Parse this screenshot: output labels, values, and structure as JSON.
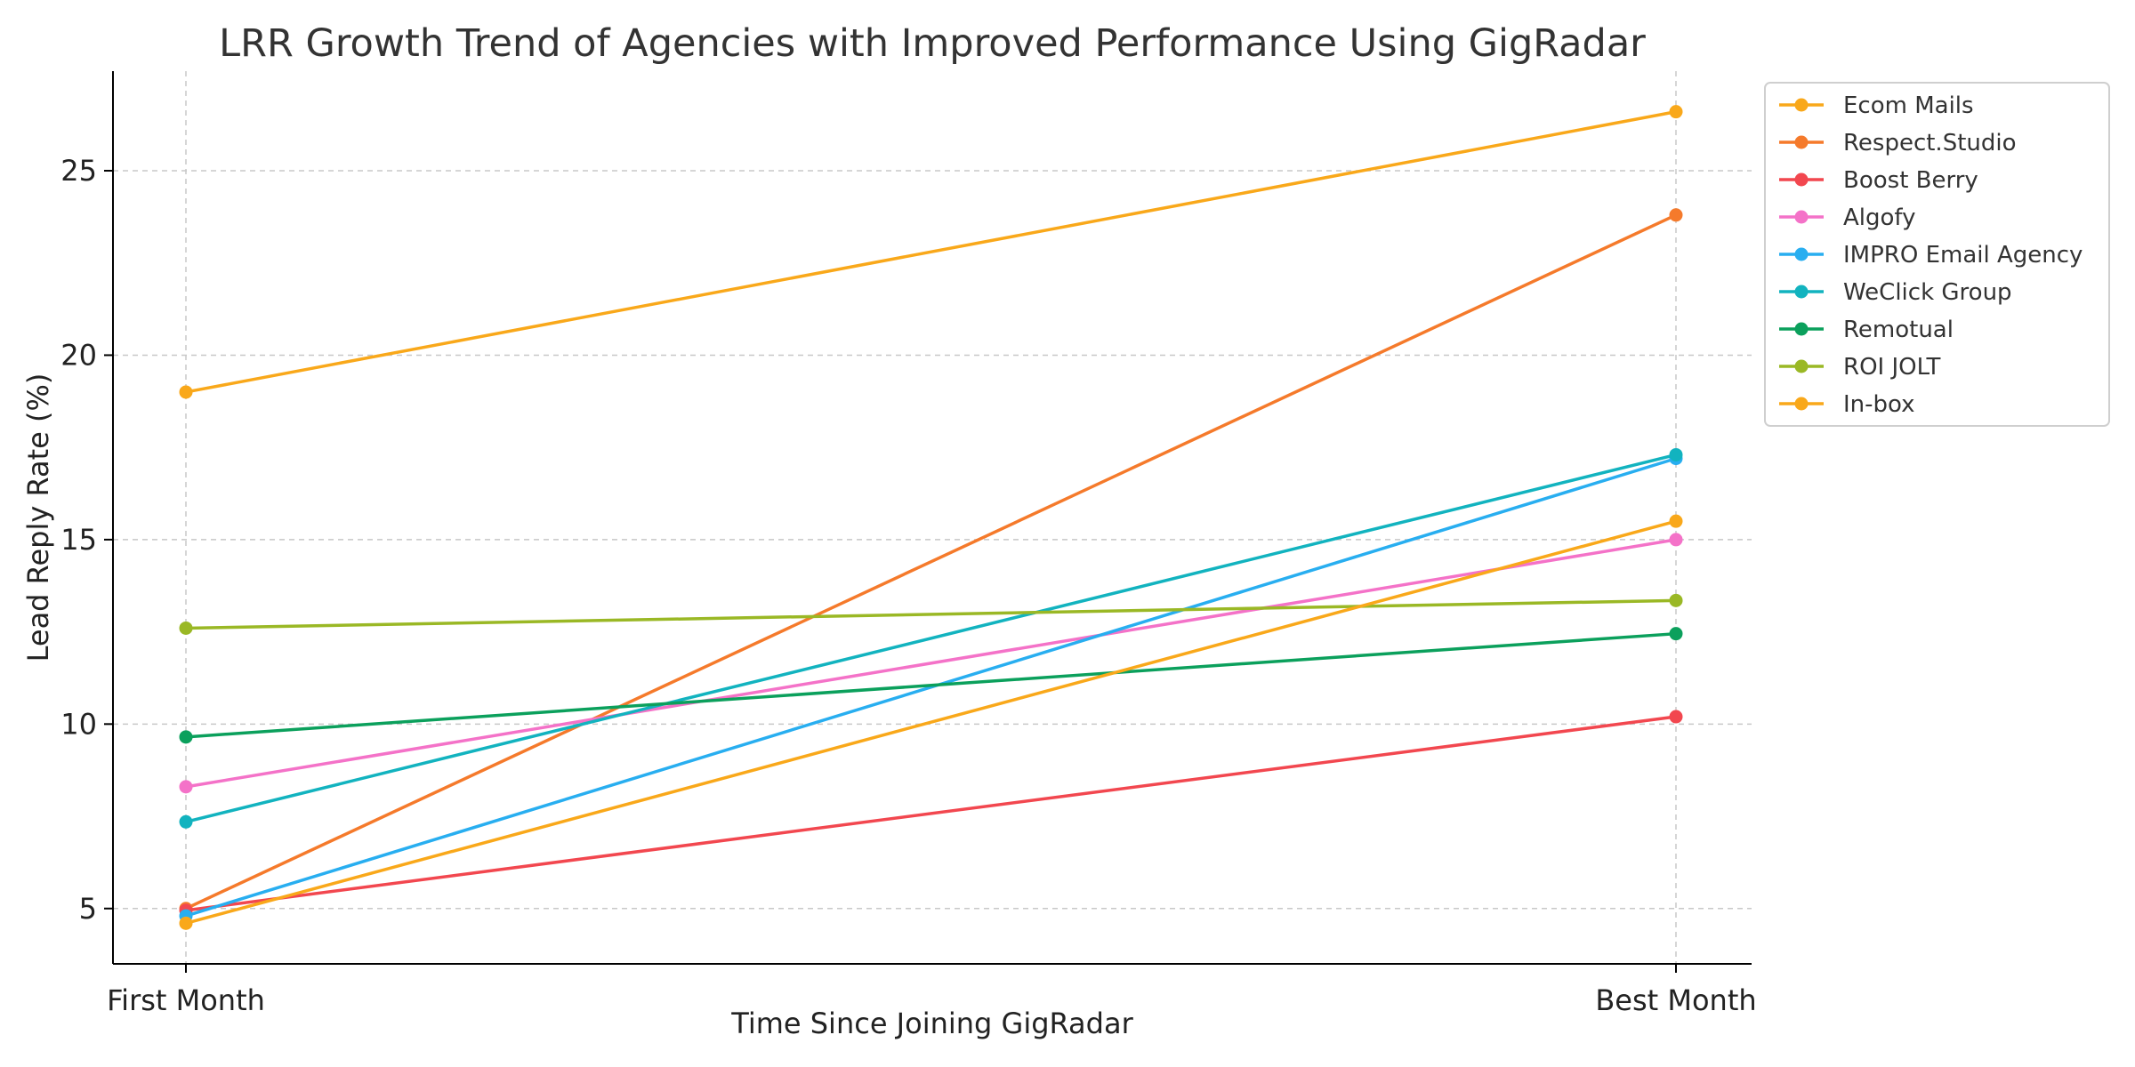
{
  "chart_data": {
    "type": "line",
    "title": "LRR Growth Trend of Agencies with Improved Performance Using GigRadar",
    "xlabel": "Time Since Joining GigRadar",
    "ylabel": "Lead Reply Rate (%)",
    "categories": [
      "First Month",
      "Best Month"
    ],
    "yticks": [
      5,
      10,
      15,
      20,
      25
    ],
    "ylim": [
      3.5,
      27.7
    ],
    "grid": true,
    "legend_position": "top-right, outside plot",
    "series": [
      {
        "name": "Ecom Mails",
        "color": "#f9a81a",
        "values": [
          19.0,
          26.6
        ]
      },
      {
        "name": "Respect.Studio",
        "color": "#f57a2b",
        "values": [
          5.0,
          23.8
        ]
      },
      {
        "name": "Boost Berry",
        "color": "#f2474f",
        "values": [
          4.95,
          10.2
        ]
      },
      {
        "name": "Algofy",
        "color": "#f472c8",
        "values": [
          8.3,
          15.0
        ]
      },
      {
        "name": "IMPRO Email Agency",
        "color": "#28aef0",
        "values": [
          4.8,
          17.2
        ]
      },
      {
        "name": "WeClick Group",
        "color": "#12b3bf",
        "values": [
          7.35,
          17.3
        ]
      },
      {
        "name": "Remotual",
        "color": "#0ba05c",
        "values": [
          9.65,
          12.45
        ]
      },
      {
        "name": "ROI JOLT",
        "color": "#9ab825",
        "values": [
          12.6,
          13.35
        ]
      },
      {
        "name": "In-box",
        "color": "#f9a81a",
        "values": [
          4.6,
          15.5
        ]
      }
    ]
  }
}
